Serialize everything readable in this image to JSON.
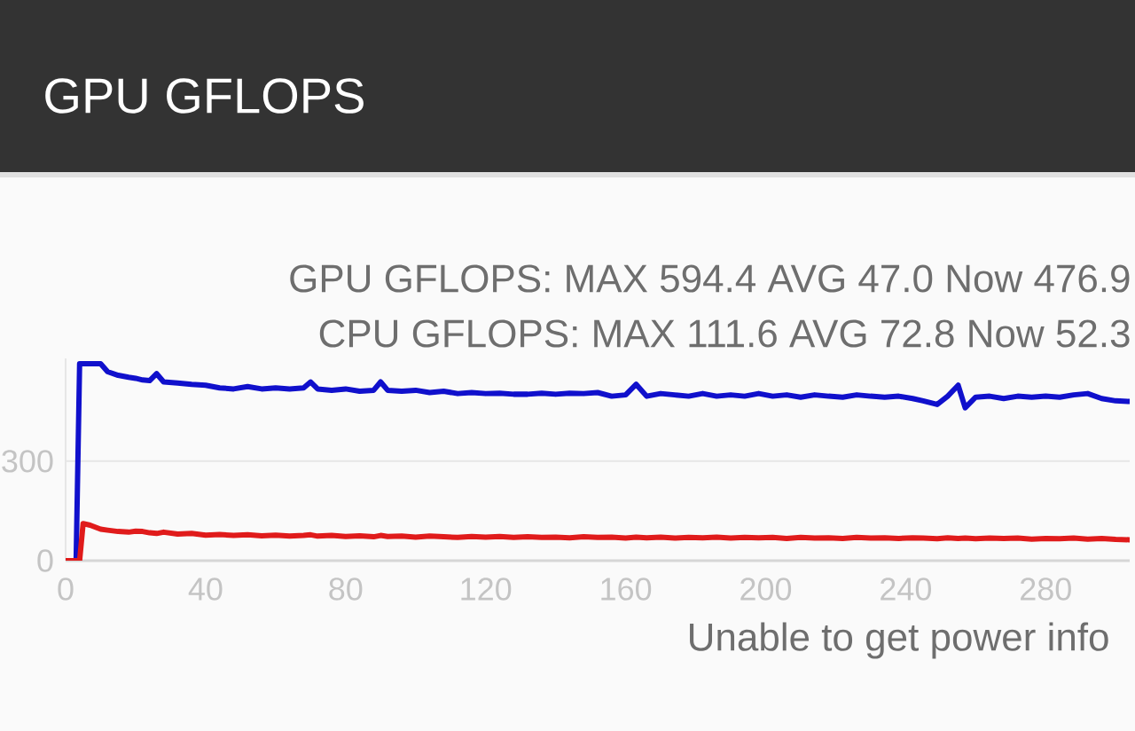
{
  "chart_data": {
    "type": "line",
    "title": "GPU GFLOPS",
    "annotations": [
      "GPU GFLOPS: MAX 594.4 AVG 47.0 Now 476.9",
      "CPU GFLOPS: MAX 111.6 AVG 72.8 Now 52.3",
      "Unable to get power info"
    ],
    "x": [
      0,
      3,
      4,
      5,
      7,
      10,
      12,
      15,
      18,
      20,
      22,
      24,
      26,
      28,
      32,
      36,
      40,
      44,
      48,
      52,
      56,
      60,
      64,
      68,
      70,
      72,
      76,
      80,
      84,
      88,
      90,
      92,
      96,
      100,
      104,
      108,
      112,
      116,
      120,
      124,
      128,
      132,
      136,
      140,
      144,
      148,
      152,
      156,
      160,
      163,
      166,
      170,
      174,
      178,
      182,
      186,
      190,
      194,
      198,
      202,
      206,
      210,
      214,
      218,
      222,
      226,
      230,
      234,
      238,
      242,
      245,
      249,
      252,
      255,
      257,
      260,
      264,
      268,
      272,
      276,
      280,
      284,
      288,
      292,
      296,
      300,
      304
    ],
    "series": [
      {
        "color": "#1010cc",
        "values": [
          0,
          0,
          594,
          594,
          594,
          594,
          570,
          559,
          553,
          550,
          545,
          543,
          564,
          539,
          536,
          532,
          529,
          521,
          518,
          525,
          518,
          521,
          518,
          521,
          539,
          518,
          514,
          518,
          511,
          514,
          539,
          514,
          511,
          514,
          507,
          511,
          504,
          507,
          504,
          505,
          502,
          502,
          505,
          502,
          505,
          504,
          507,
          496,
          500,
          532,
          496,
          504,
          500,
          496,
          504,
          496,
          500,
          496,
          504,
          496,
          500,
          493,
          500,
          496,
          493,
          500,
          496,
          493,
          496,
          489,
          482,
          471,
          496,
          529,
          461,
          493,
          496,
          489,
          496,
          493,
          496,
          493,
          500,
          504,
          489,
          482,
          480
        ]
      },
      {
        "color": "#e01b1b",
        "values": [
          0,
          0,
          0,
          112,
          107,
          95,
          92,
          88,
          86,
          89,
          88,
          84,
          82,
          86,
          80,
          82,
          77,
          79,
          76,
          78,
          75,
          77,
          74,
          76,
          78,
          74,
          76,
          73,
          75,
          72,
          76,
          73,
          74,
          71,
          74,
          72,
          70,
          73,
          71,
          73,
          70,
          72,
          70,
          71,
          69,
          72,
          70,
          71,
          68,
          71,
          69,
          71,
          68,
          70,
          69,
          71,
          68,
          70,
          69,
          70,
          67,
          70,
          68,
          69,
          67,
          70,
          68,
          69,
          67,
          69,
          68,
          66,
          69,
          67,
          68,
          66,
          68,
          67,
          68,
          65,
          67,
          66,
          68,
          65,
          67,
          64,
          63
        ]
      }
    ],
    "xlim": [
      0,
      304
    ],
    "ylim": [
      0,
      610
    ],
    "xticks": [
      0,
      40,
      80,
      120,
      160,
      200,
      240,
      280
    ],
    "yticks": [
      0,
      300
    ],
    "grid": "y"
  }
}
